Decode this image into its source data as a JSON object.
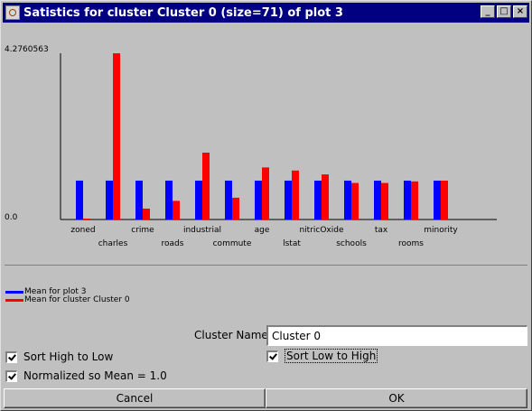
{
  "window": {
    "title": "Satistics for cluster Cluster 0 (size=71) of plot 3"
  },
  "titlebar_buttons": {
    "minimize": "_",
    "maximize": "□",
    "close": "×"
  },
  "colors": {
    "series_plot": "#0000ff",
    "series_cluster": "#ff0000",
    "titlebar": "#000080"
  },
  "chart_data": {
    "type": "bar",
    "ymax_label": "4.2760563",
    "ymin_label": "0.0",
    "ylim": [
      0,
      4.2760563
    ],
    "categories": [
      "zoned",
      "charles",
      "crime",
      "roads",
      "industrial",
      "commute",
      "age",
      "lstat",
      "nitricOxide",
      "schools",
      "tax",
      "rooms",
      "minority"
    ],
    "series": [
      {
        "name": "Mean for plot 3",
        "color": "#0000ff",
        "values": [
          1.0,
          1.0,
          1.0,
          1.0,
          1.0,
          1.0,
          1.0,
          1.0,
          1.0,
          1.0,
          1.0,
          1.0,
          1.0
        ]
      },
      {
        "name": "Mean for cluster Cluster 0",
        "color": "#ff0000",
        "values": [
          0.02,
          4.2760563,
          0.28,
          0.48,
          1.72,
          0.56,
          1.34,
          1.26,
          1.16,
          0.94,
          0.94,
          0.98,
          1.0
        ]
      }
    ]
  },
  "legend": {
    "items": [
      {
        "label": "Mean for plot 3",
        "color": "#0000ff"
      },
      {
        "label": "Mean for cluster Cluster 0",
        "color": "#ff0000"
      }
    ]
  },
  "form": {
    "cluster_name_label": "Cluster Name",
    "cluster_name_value": "Cluster 0",
    "sort_high_to_low": {
      "label": "Sort High to Low",
      "checked": true
    },
    "sort_low_to_high": {
      "label": "Sort Low to High",
      "checked": true
    },
    "normalized": {
      "label": "Normalized so Mean = 1.0",
      "checked": true
    }
  },
  "buttons": {
    "cancel": "Cancel",
    "ok": "OK"
  }
}
